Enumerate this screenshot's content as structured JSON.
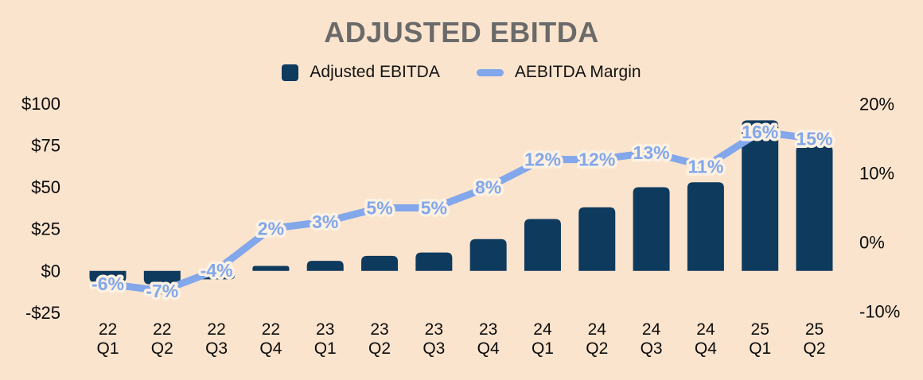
{
  "colors": {
    "background": "#FBE4CD",
    "bar": "#0E3A5E",
    "line": "#82A7EB",
    "label_halo": "#FDF1E2",
    "title": "#6A6A6A",
    "axis_text": "#0B0B0B"
  },
  "chart_data": {
    "type": "bar",
    "title": "ADJUSTED EBITDA",
    "categories": [
      "22 Q1",
      "22 Q2",
      "22 Q3",
      "22 Q4",
      "23 Q1",
      "23 Q2",
      "23 Q3",
      "23 Q4",
      "24 Q1",
      "24 Q2",
      "24 Q3",
      "24 Q4",
      "25 Q1",
      "25 Q2"
    ],
    "series": [
      {
        "name": "Adjusted EBITDA",
        "type": "bar",
        "axis": "left",
        "values": [
          -7,
          -8,
          -5,
          3,
          6,
          9,
          11,
          19,
          31,
          38,
          50,
          53,
          90,
          75
        ]
      },
      {
        "name": "AEBITDA Margin",
        "type": "line",
        "axis": "right",
        "values": [
          -6,
          -7,
          -4,
          2,
          3,
          5,
          5,
          8,
          12,
          12,
          13,
          11,
          16,
          15
        ],
        "point_labels": [
          "-6%",
          "-7%",
          "-4%",
          "2%",
          "3%",
          "5%",
          "5%",
          "8%",
          "12%",
          "12%",
          "13%",
          "11%",
          "16%",
          "15%"
        ]
      }
    ],
    "left_axis": {
      "ticks": [
        "$100",
        "$75",
        "$50",
        "$25",
        "$0",
        "-$25"
      ],
      "tick_values": [
        100,
        75,
        50,
        25,
        0,
        -25
      ],
      "ylim": [
        -25,
        100
      ]
    },
    "right_axis": {
      "ticks": [
        "20%",
        "10%",
        "0%",
        "-10%"
      ],
      "tick_values": [
        20,
        10,
        0,
        -10
      ],
      "ylim": [
        -10,
        20
      ]
    },
    "grid": false,
    "legend_position": "top"
  }
}
